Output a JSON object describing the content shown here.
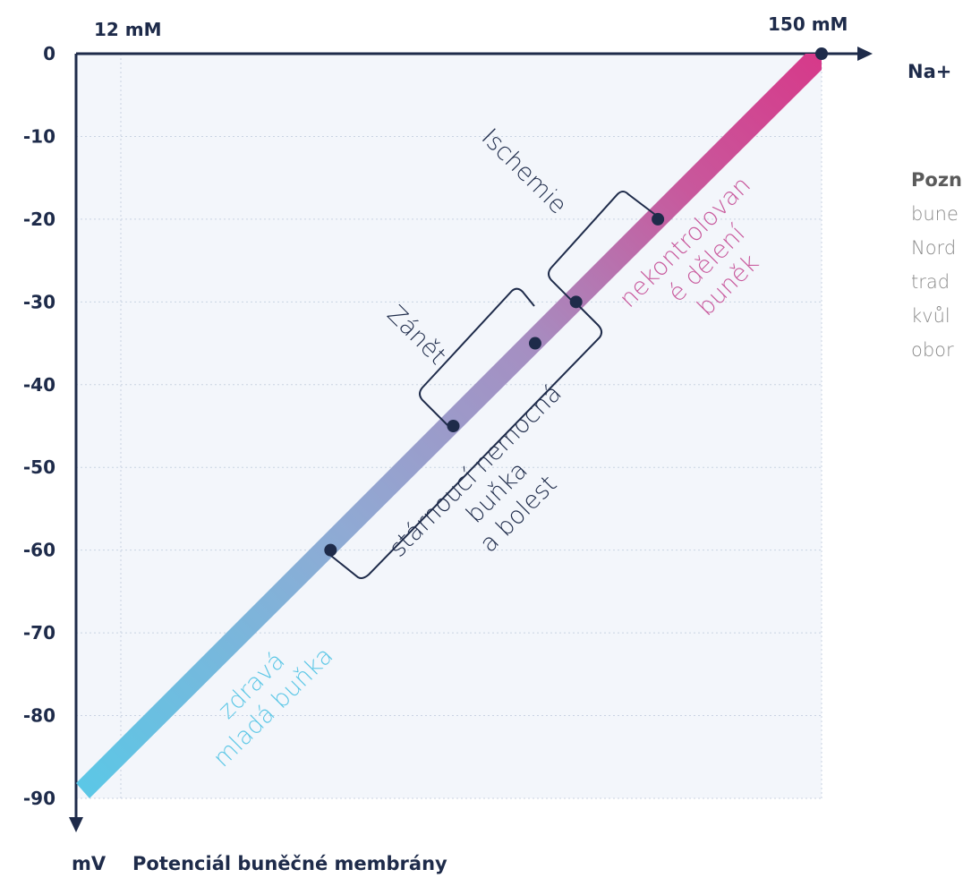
{
  "chart_data": {
    "type": "line",
    "title": "",
    "xlabel": "Na+",
    "ylabel": "mV",
    "x_unit_label": "Potenciál buněčné membrány",
    "x_ticks": [
      "12 mM",
      "150 mM"
    ],
    "y_ticks": [
      "0",
      "-10",
      "-20",
      "-30",
      "-40",
      "-50",
      "-60",
      "-70",
      "-80",
      "-90"
    ],
    "ylim": [
      -90,
      0
    ],
    "grid": true,
    "line": {
      "from": {
        "x": 12,
        "y": -90
      },
      "to": {
        "x": 150,
        "y": 0
      },
      "gradient": [
        "#5cc7e6",
        "#8faad4",
        "#a58fc2",
        "#c8589c",
        "#d63a8a"
      ]
    },
    "points": [
      {
        "name": "start-60",
        "y": -60
      },
      {
        "name": "start-45",
        "y": -45
      },
      {
        "name": "start-35",
        "y": -35
      },
      {
        "name": "start-30",
        "y": -30
      },
      {
        "name": "start-20",
        "y": -20
      },
      {
        "name": "end-0",
        "y": 0
      }
    ],
    "phases": [
      {
        "lines": [
          "zdravá",
          "mladá buňka"
        ],
        "color": "#5cc7e6"
      },
      {
        "lines": [
          "stárnoucí nemocná",
          "buňka",
          "a bolest"
        ],
        "color": "#1e2b4a"
      },
      {
        "lines": [
          "Zánět"
        ],
        "color": "#1e2b4a"
      },
      {
        "lines": [
          "Ischemie"
        ],
        "color": "#1e2b4a"
      },
      {
        "lines": [
          "nekontrolovan",
          "é dělení",
          "buněk"
        ],
        "color": "#c8589c"
      }
    ]
  },
  "note": {
    "bold": "Pozn",
    "lines": [
      "bune",
      "Nord",
      "trad",
      "kvůl",
      "obor"
    ]
  },
  "colors": {
    "axis": "#1e2b4a",
    "plot_bg": "#f3f6fb",
    "grid": "#c9d3e2"
  }
}
